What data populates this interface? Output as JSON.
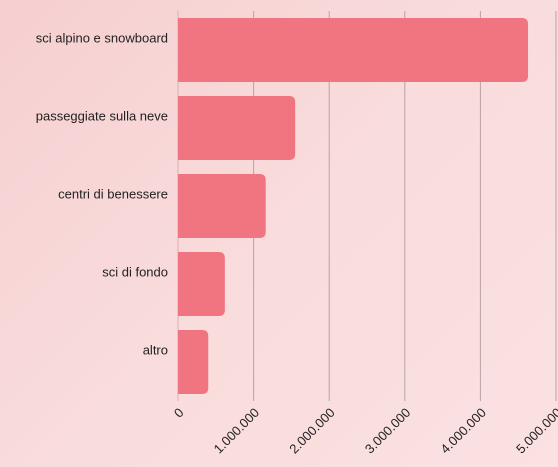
{
  "chart_data": {
    "type": "bar",
    "orientation": "horizontal",
    "categories": [
      "sci alpino e snowboard",
      "passeggiate sulla neve",
      "centri di benessere",
      "sci di fondo",
      "altro"
    ],
    "values": [
      4630000,
      1550000,
      1160000,
      620000,
      400000
    ],
    "color": "#f07580",
    "xlim": [
      0,
      5000000
    ],
    "xticks": [
      0,
      {
        "value": 1000000,
        "label": "1.000.000"
      },
      {
        "value": 2000000,
        "label": "2.000.000"
      },
      {
        "value": 3000000,
        "label": "3.000.000"
      },
      {
        "value": 4000000,
        "label": "4.000.000"
      },
      {
        "value": 5000000,
        "label": "5.000.000"
      }
    ],
    "grid": true
  }
}
